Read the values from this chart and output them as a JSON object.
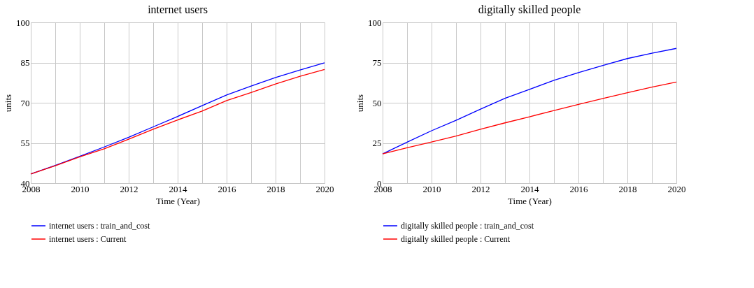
{
  "chart_data": [
    {
      "type": "line",
      "title": "internet users",
      "xlabel": "Time (Year)",
      "ylabel": "units",
      "x": [
        2008,
        2009,
        2010,
        2011,
        2012,
        2013,
        2014,
        2015,
        2016,
        2017,
        2018,
        2019,
        2020
      ],
      "series": [
        {
          "name": "internet users : train_and_cost",
          "color": "#0000ff",
          "values": [
            43.4,
            46.6,
            50.0,
            53.5,
            57.1,
            61.0,
            64.9,
            68.9,
            72.9,
            76.2,
            79.4,
            82.2,
            84.9
          ]
        },
        {
          "name": "internet users : Current",
          "color": "#ff0000",
          "values": [
            43.4,
            46.5,
            49.8,
            52.8,
            56.4,
            60.1,
            63.6,
            66.9,
            70.8,
            73.8,
            77.0,
            79.9,
            82.4
          ]
        }
      ],
      "xlim": [
        2008,
        2020
      ],
      "xticks": [
        2008,
        {
          "value": 2009,
          "label": null
        },
        2010,
        {
          "value": 2011,
          "label": null
        },
        2012,
        {
          "value": 2013,
          "label": null
        },
        2014,
        {
          "value": 2015,
          "label": null
        },
        2016,
        {
          "value": 2017,
          "label": null
        },
        2018,
        {
          "value": 2019,
          "label": null
        },
        2020
      ],
      "ylim": [
        40,
        100
      ],
      "yticks": [
        40,
        55,
        70,
        85,
        100
      ],
      "grid": true,
      "legend": "bottom",
      "line_style": "solid",
      "marker": "none"
    },
    {
      "type": "line",
      "title": "digitally skilled people",
      "xlabel": "Time (Year)",
      "ylabel": "units",
      "x": [
        2008,
        2009,
        2010,
        2011,
        2012,
        2013,
        2014,
        2015,
        2016,
        2017,
        2018,
        2019,
        2020
      ],
      "series": [
        {
          "name": "digitally skilled people : train_and_cost",
          "color": "#0000ff",
          "values": [
            18.2,
            25.5,
            32.6,
            39.1,
            46.0,
            52.8,
            58.3,
            64.0,
            68.8,
            73.2,
            77.5,
            80.8,
            83.8
          ]
        },
        {
          "name": "digitally skilled people : Current",
          "color": "#ff0000",
          "values": [
            18.2,
            22.0,
            25.6,
            29.3,
            33.5,
            37.5,
            41.3,
            45.2,
            49.0,
            52.7,
            56.2,
            59.7,
            62.9
          ]
        }
      ],
      "xlim": [
        2008,
        2020
      ],
      "xticks": [
        2008,
        {
          "value": 2009,
          "label": null
        },
        2010,
        {
          "value": 2011,
          "label": null
        },
        2012,
        {
          "value": 2013,
          "label": null
        },
        2014,
        {
          "value": 2015,
          "label": null
        },
        2016,
        {
          "value": 2017,
          "label": null
        },
        2018,
        {
          "value": 2019,
          "label": null
        },
        2020
      ],
      "ylim": [
        0,
        100
      ],
      "yticks": [
        0,
        25,
        50,
        75,
        100
      ],
      "grid": true,
      "legend": "bottom",
      "line_style": "solid",
      "marker": "none"
    }
  ]
}
